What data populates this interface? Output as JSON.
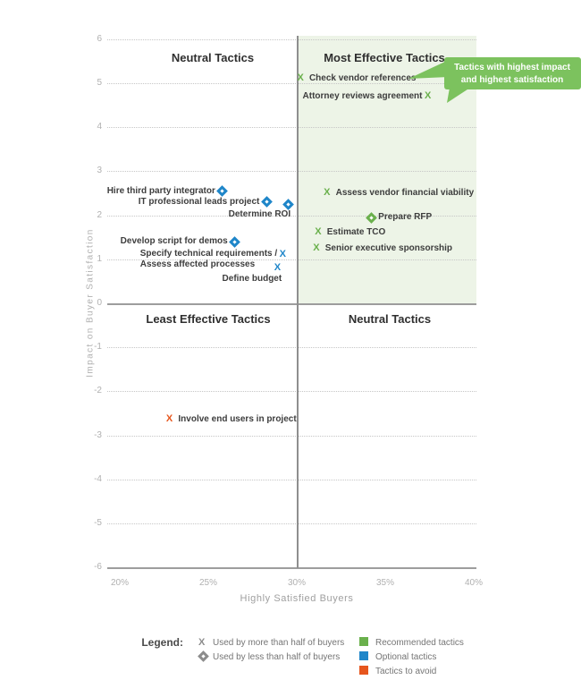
{
  "figure": {
    "quadrants": {
      "top_left": "Neutral Tactics",
      "top_right": "Most Effective Tactics",
      "bottom_left": "Least Effective Tactics",
      "bottom_right": "Neutral Tactics"
    },
    "callout": {
      "line1": "Tactics with highest impact",
      "line2": "and highest satisfaction"
    }
  },
  "chart_data": {
    "type": "scatter",
    "title": "",
    "xlabel": "Highly Satisfied Buyers",
    "ylabel": "Impact on Buyer Satisfaction",
    "xlim": [
      20,
      40
    ],
    "ylim": [
      -6,
      6
    ],
    "x_ticks": [
      "20%",
      "25%",
      "30%",
      "35%",
      "40%"
    ],
    "x_tick_values": [
      20,
      25,
      30,
      35,
      40
    ],
    "y_ticks": [
      6,
      5,
      4,
      3,
      2,
      1,
      0,
      -1,
      -2,
      -3,
      -4,
      -5,
      -6
    ],
    "grid": "horizontal dotted; solid lines at y=0 and y=-6; vertical divider at x=30%; top-right quadrant shaded light green",
    "points": [
      {
        "name": "Check vendor references",
        "x": 30.3,
        "y": 5.1,
        "category": "recommended",
        "marker": "x",
        "usage": "more than half",
        "label_side": "right"
      },
      {
        "name": "Attorney reviews agreement",
        "x": 37.5,
        "y": 4.7,
        "category": "recommended",
        "marker": "x",
        "usage": "more than half",
        "label_side": "left"
      },
      {
        "name": "Assess vendor financial viability",
        "x": 31.8,
        "y": 2.5,
        "category": "recommended",
        "marker": "x",
        "usage": "more than half",
        "label_side": "right"
      },
      {
        "name": "Prepare RFP",
        "x": 34.2,
        "y": 1.95,
        "category": "recommended",
        "marker": "diamond",
        "usage": "less than half",
        "label_side": "right"
      },
      {
        "name": "Estimate TCO",
        "x": 31.3,
        "y": 1.6,
        "category": "recommended",
        "marker": "x",
        "usage": "more than half",
        "label_side": "right"
      },
      {
        "name": "Senior executive sponsorship",
        "x": 31.2,
        "y": 1.25,
        "category": "recommended",
        "marker": "x",
        "usage": "more than half",
        "label_side": "right"
      },
      {
        "name": "Hire third party integrator",
        "x": 25.8,
        "y": 2.55,
        "category": "optional",
        "marker": "diamond",
        "usage": "less than half",
        "label_side": "left"
      },
      {
        "name": "IT professional leads project",
        "x": 28.3,
        "y": 2.3,
        "category": "optional",
        "marker": "diamond",
        "usage": "less than half",
        "label_side": "left"
      },
      {
        "name": "Determine ROI",
        "x": 29.5,
        "y": 2.25,
        "category": "optional",
        "marker": "diamond",
        "usage": "less than half",
        "label_side": "below-left"
      },
      {
        "name": "Develop script for demos",
        "x": 26.5,
        "y": 1.4,
        "category": "optional",
        "marker": "diamond",
        "usage": "less than half",
        "label_side": "left"
      },
      {
        "name": "Specify technical requirements / Assess affected processes",
        "label_lines": [
          "Specify technical requirements /",
          "Assess affected processes"
        ],
        "x": 29.3,
        "y": 1.1,
        "category": "optional",
        "marker": "x",
        "usage": "more than half",
        "label_side": "left"
      },
      {
        "name": "Define budget",
        "x": 29.0,
        "y": 0.8,
        "category": "optional",
        "marker": "x",
        "usage": "more than half",
        "label_side": "below-left"
      },
      {
        "name": "Involve end users in project",
        "x": 22.9,
        "y": -2.65,
        "category": "avoid",
        "marker": "x",
        "usage": "more than half",
        "label_side": "right"
      }
    ]
  },
  "legend": {
    "title": "Legend:",
    "marker_items": [
      {
        "symbol": "x",
        "label": "Used by more than half of buyers"
      },
      {
        "symbol": "diamond",
        "label": "Used by less than half of buyers"
      }
    ],
    "color_items": [
      {
        "color": "#6ab04c",
        "label": "Recommended tactics"
      },
      {
        "color": "#1f86c9",
        "label": "Optional tactics"
      },
      {
        "color": "#e6561d",
        "label": "Tactics to avoid"
      }
    ]
  },
  "colors": {
    "recommended": "#6ab04c",
    "optional": "#1f86c9",
    "avoid": "#e6561d",
    "quadrant_shading": "#edf4e7",
    "callout_bubble": "#7cc25e",
    "neutral_symbol": "#8c8c8c"
  }
}
